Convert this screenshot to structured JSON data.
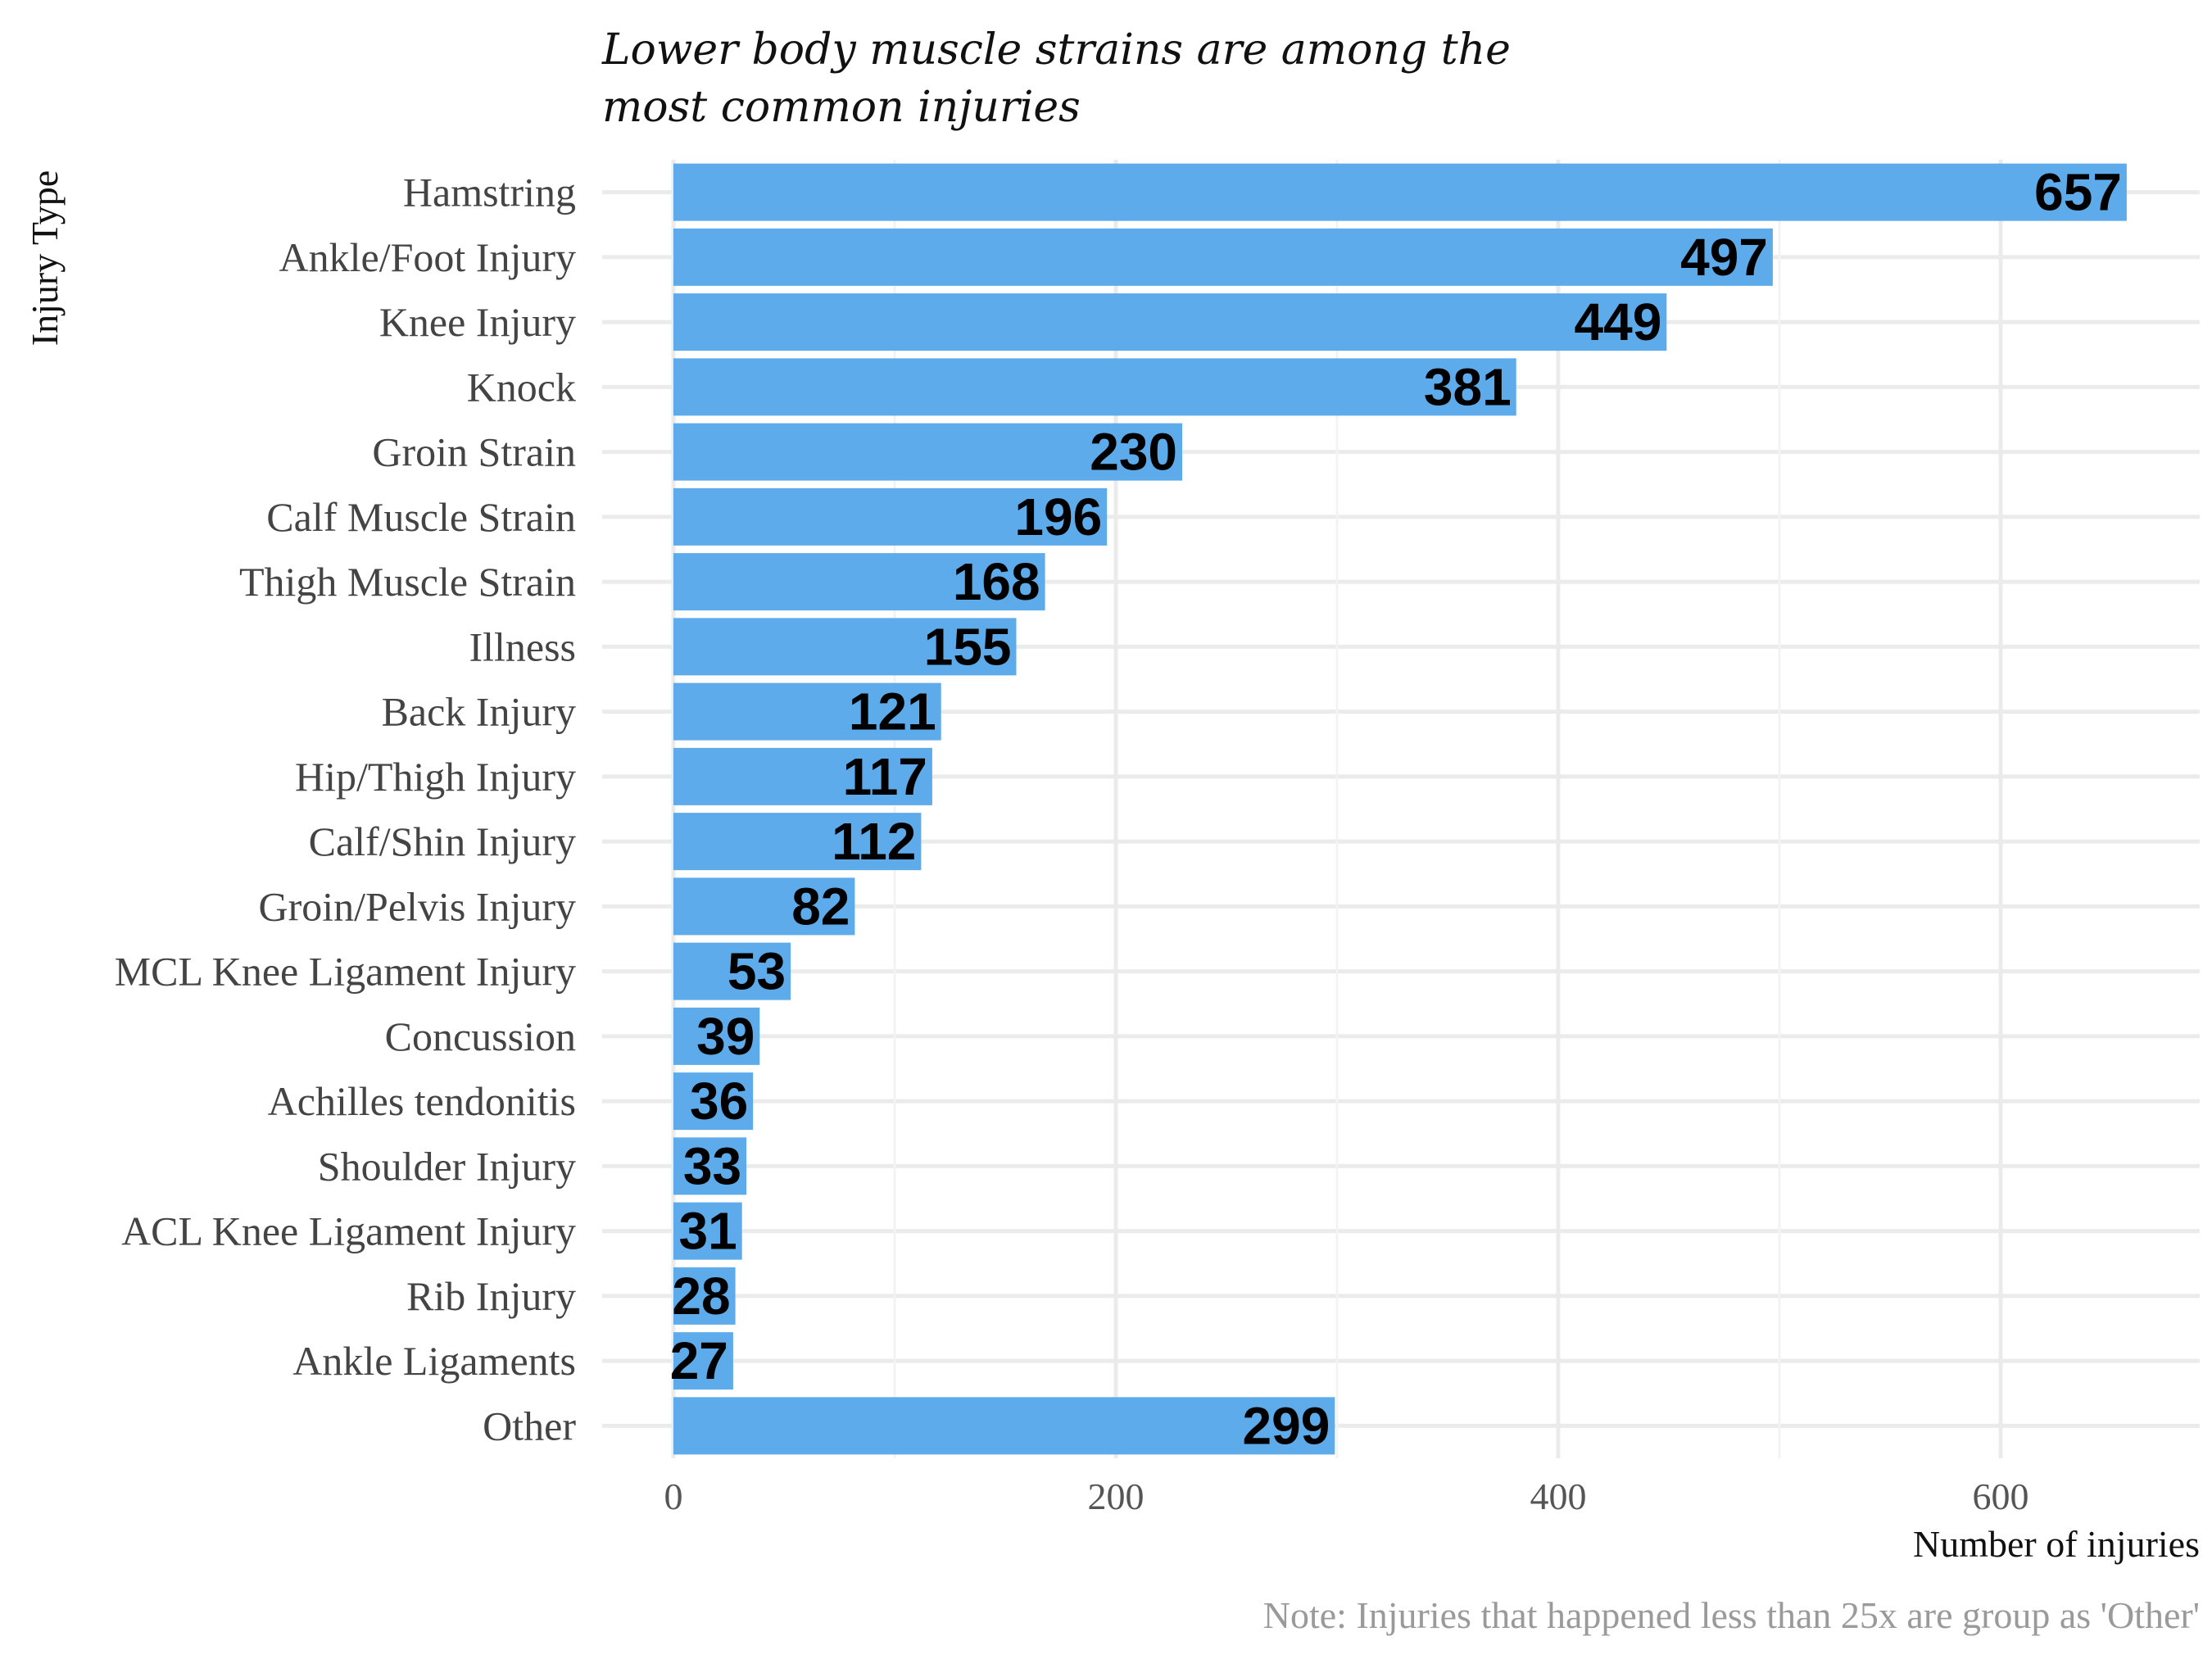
{
  "chart_data": {
    "type": "bar",
    "orientation": "horizontal",
    "title": "Lower body muscle strains are among the most common injuries",
    "title_lines": [
      "Lower body muscle strains are among the",
      "most common injuries"
    ],
    "ylabel": "Injury Type",
    "xlabel": "Number of injuries",
    "note": "Note: Injuries that happened less than 25x are group as 'Other'",
    "categories": [
      "Hamstring",
      "Ankle/Foot Injury",
      "Knee Injury",
      "Knock",
      "Groin Strain",
      "Calf Muscle Strain",
      "Thigh Muscle Strain",
      "Illness",
      "Back Injury",
      "Hip/Thigh Injury",
      "Calf/Shin Injury",
      "Groin/Pelvis Injury",
      "MCL Knee Ligament Injury",
      "Concussion",
      "Achilles tendonitis",
      "Shoulder Injury",
      "ACL Knee Ligament Injury",
      "Rib Injury",
      "Ankle Ligaments",
      "Other"
    ],
    "values": [
      657,
      497,
      449,
      381,
      230,
      196,
      168,
      155,
      121,
      117,
      112,
      82,
      53,
      39,
      36,
      33,
      31,
      28,
      27,
      299
    ],
    "xlim": [
      0,
      690
    ],
    "xticks": [
      0,
      200,
      400,
      600
    ],
    "xtick_labels": [
      "0",
      "200",
      "400",
      "600"
    ],
    "bar_color": "#5dabea",
    "grid": true,
    "legend": "none"
  }
}
